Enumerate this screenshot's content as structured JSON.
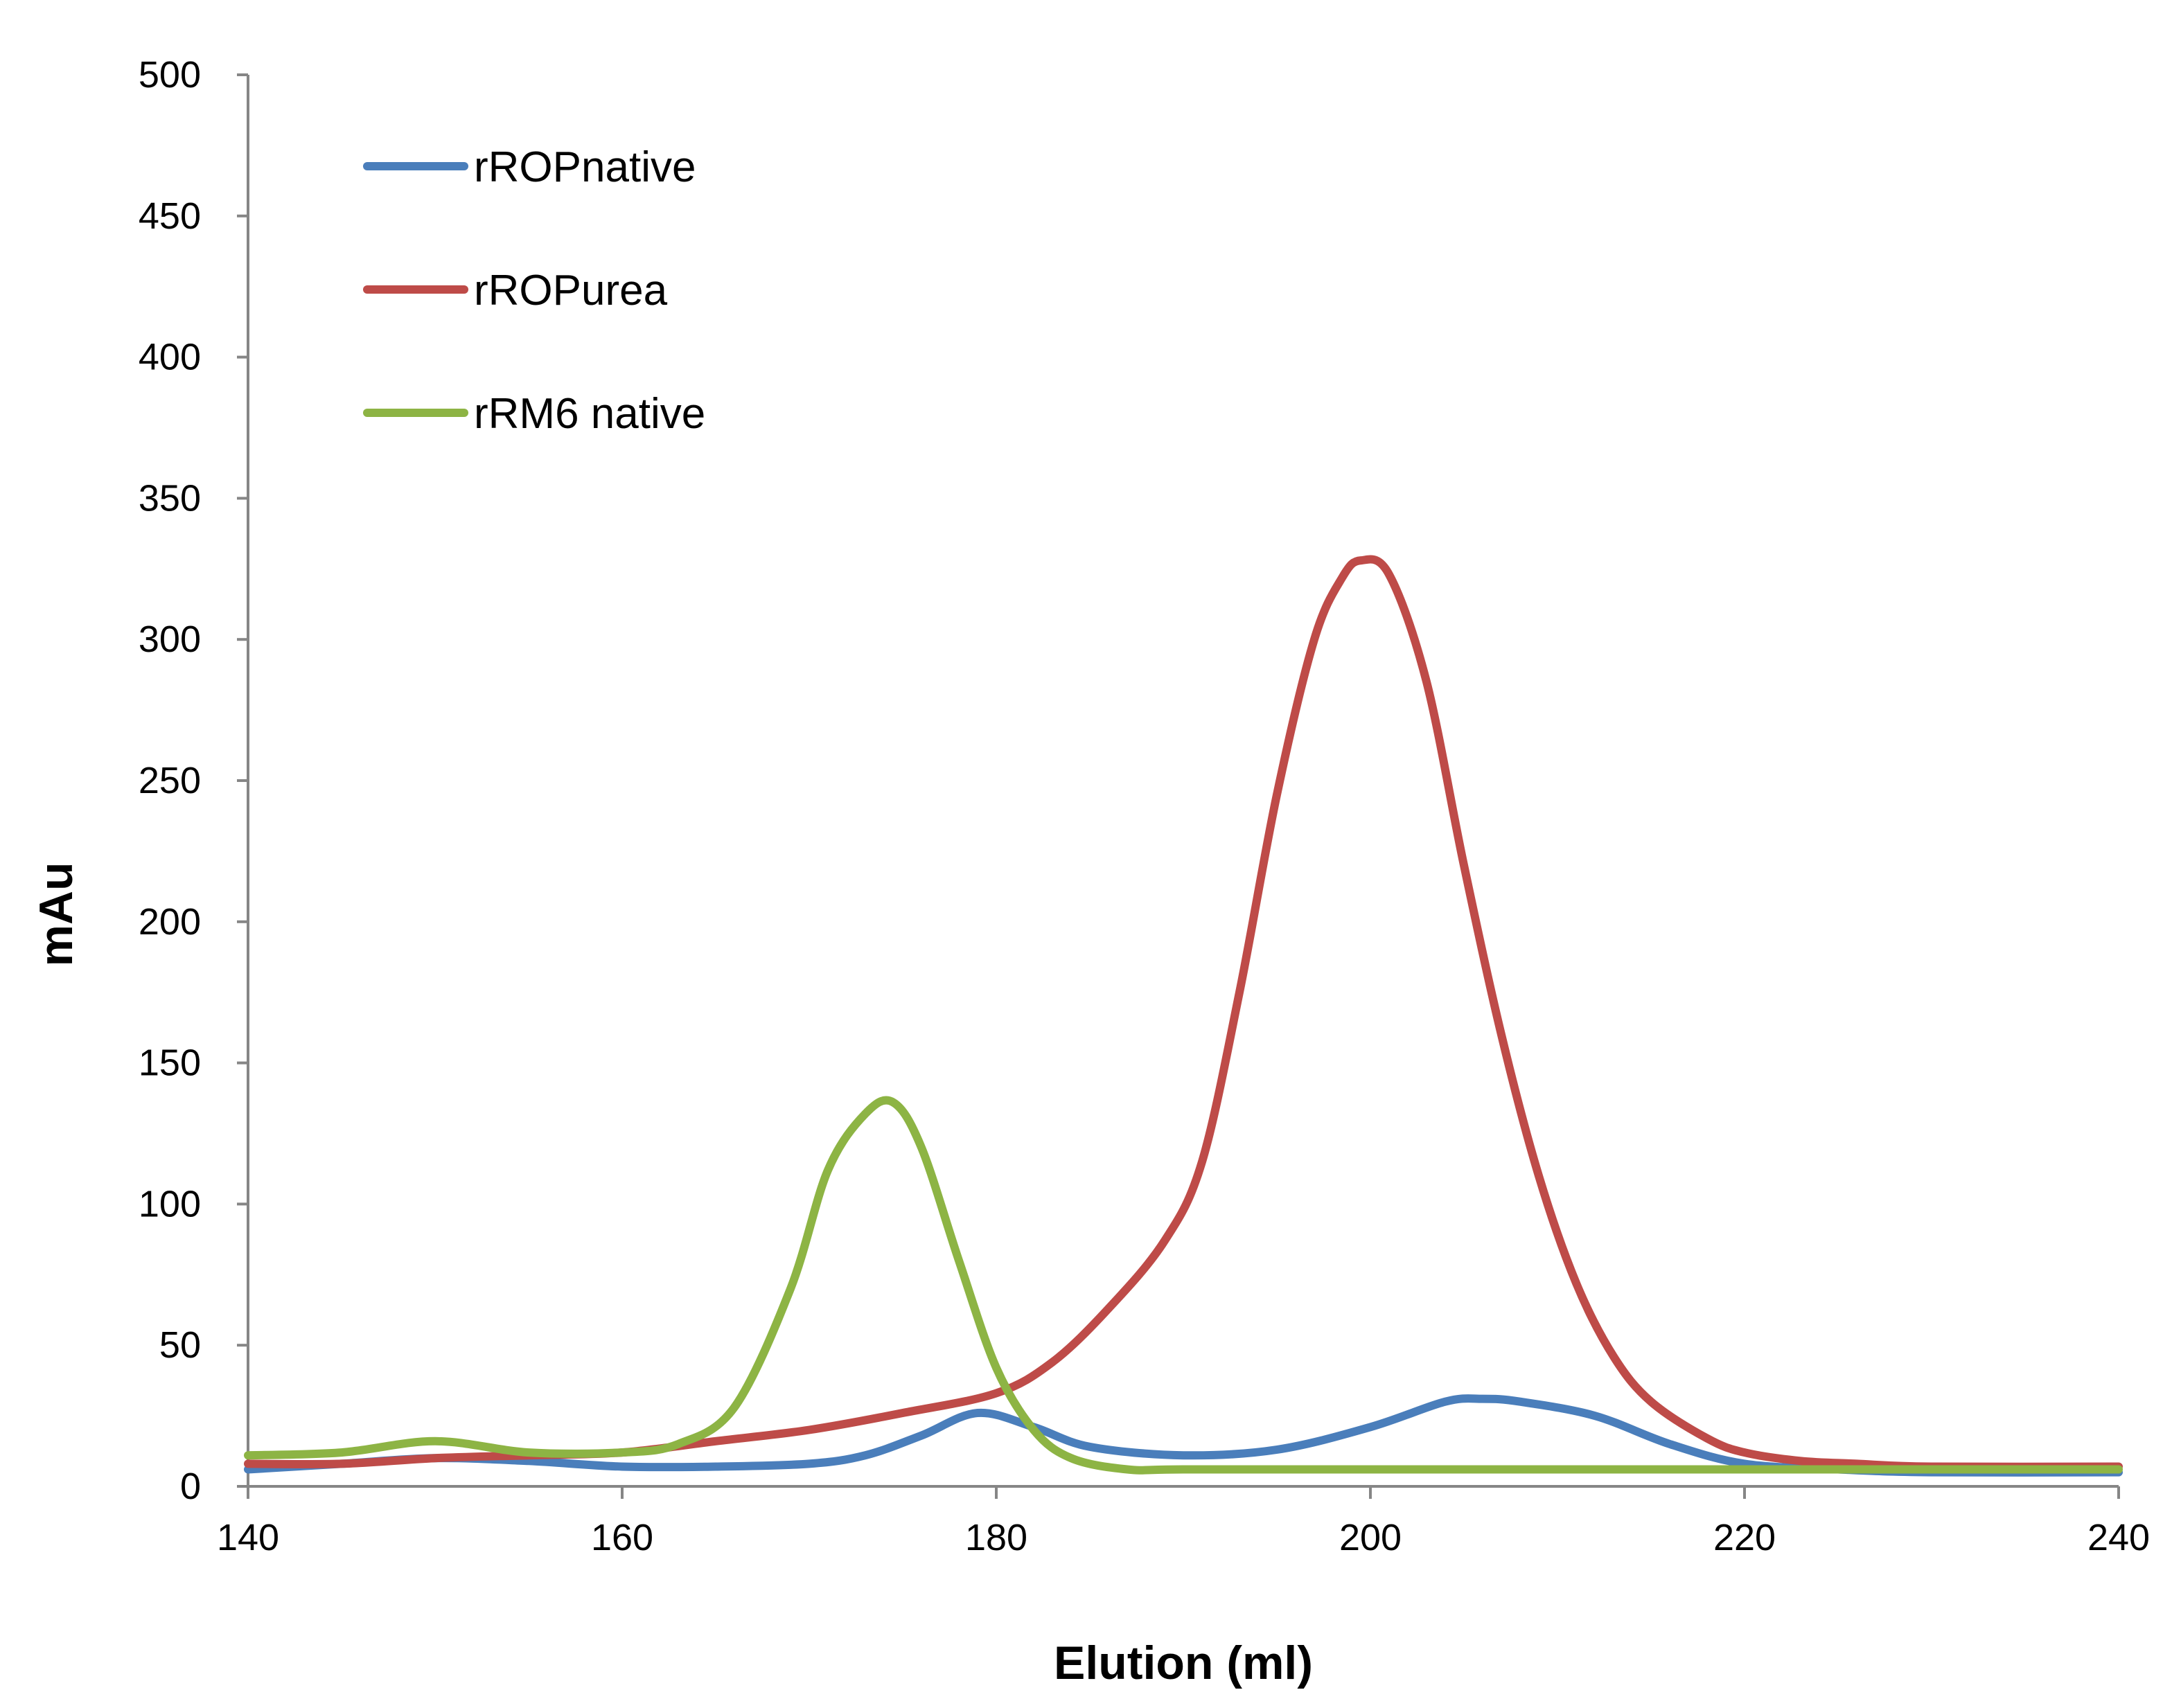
{
  "chart_data": {
    "type": "line",
    "title": "",
    "xlabel": "Elution (ml)",
    "ylabel": "mAu",
    "xlim": [
      140,
      240
    ],
    "ylim": [
      0,
      500
    ],
    "xticks": [
      "140",
      "160",
      "180",
      "200",
      "220",
      "240"
    ],
    "yticks": [
      "0",
      "50",
      "100",
      "150",
      "200",
      "250",
      "300",
      "350",
      "400",
      "450",
      "500"
    ],
    "grid": false,
    "legend_position": "top-left",
    "series": [
      {
        "name": "rROPnative",
        "color": "#4a7ebb",
        "x": [
          140,
          145,
          150,
          155,
          160,
          165,
          170,
          173,
          176,
          179,
          182,
          185,
          190,
          195,
          200,
          204,
          206,
          208,
          212,
          216,
          220,
          225,
          230,
          240
        ],
        "y": [
          6,
          8,
          10,
          9,
          7,
          7,
          8,
          11,
          18,
          26,
          21,
          14,
          11,
          13,
          21,
          30,
          31,
          30,
          25,
          15,
          8,
          6,
          5,
          5
        ]
      },
      {
        "name": "rROPurea",
        "color": "#be4b48",
        "x": [
          140,
          145,
          150,
          155,
          160,
          165,
          170,
          175,
          180,
          183,
          186,
          189,
          191,
          193,
          195,
          197,
          198.5,
          199.5,
          201,
          203,
          205,
          207,
          209,
          211,
          213,
          215,
          218,
          220,
          223,
          226,
          230,
          240
        ],
        "y": [
          8,
          8,
          10,
          11,
          12,
          16,
          20,
          26,
          33,
          44,
          63,
          87,
          115,
          175,
          245,
          300,
          322,
          328,
          323,
          285,
          220,
          160,
          110,
          72,
          46,
          30,
          17,
          12,
          9,
          8,
          7,
          7
        ]
      },
      {
        "name": "rRM6 native",
        "color": "#8db444",
        "x": [
          140,
          145,
          150,
          155,
          160,
          163,
          166,
          169,
          171,
          173,
          174.5,
          176,
          178,
          180,
          182,
          184,
          187,
          190,
          200,
          220,
          240
        ],
        "y": [
          11,
          12,
          16,
          12,
          12,
          15,
          28,
          70,
          112,
          132,
          136,
          120,
          80,
          42,
          20,
          10,
          6,
          6,
          6,
          6,
          6
        ]
      }
    ]
  }
}
